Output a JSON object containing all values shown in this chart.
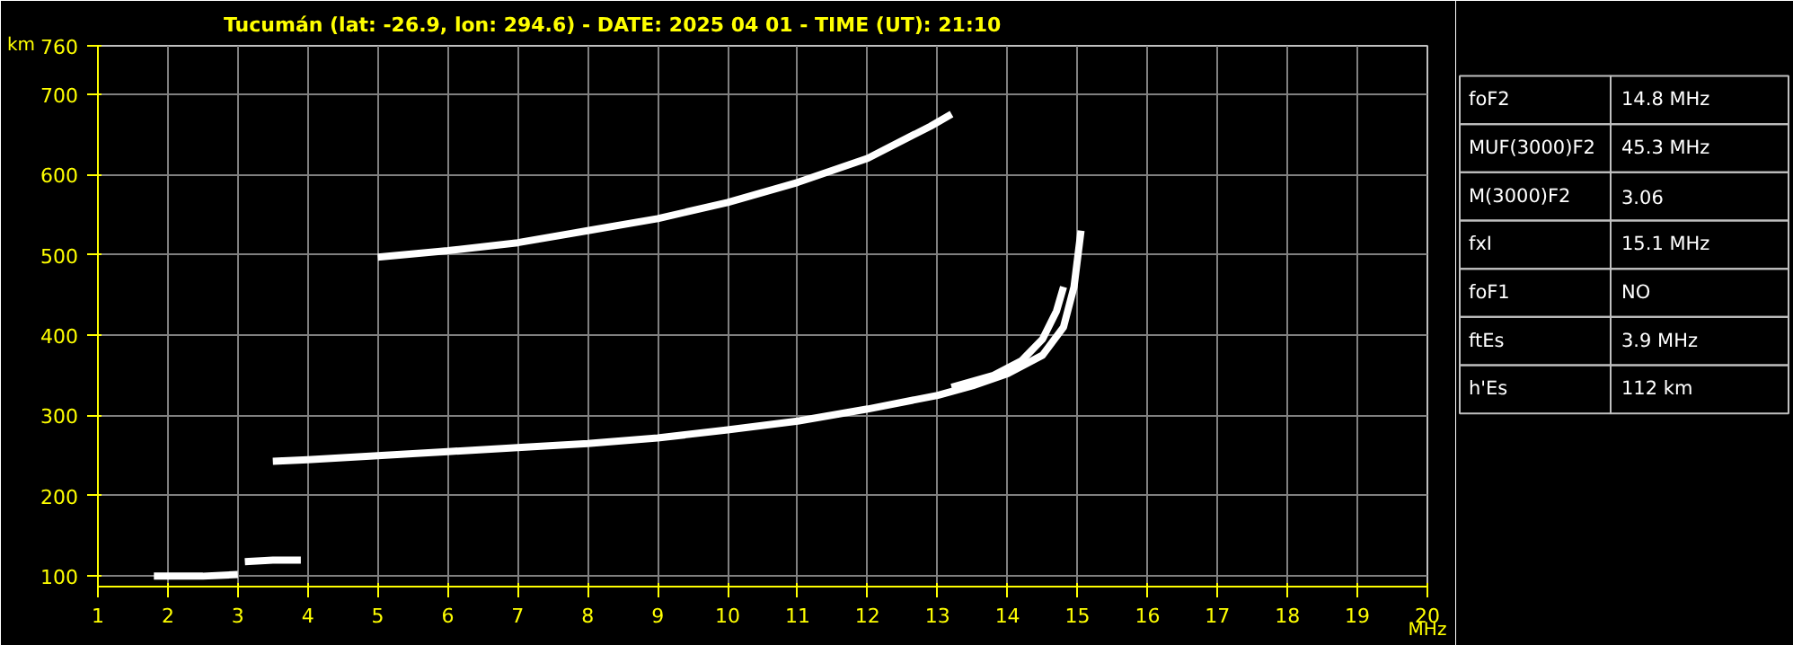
{
  "chart_data": [
    {
      "type": "line",
      "title": "Tucumán (lat: -26.9, lon: 294.6) - DATE: 2025 04 01 - TIME (UT): 21:10",
      "xlabel": "MHz",
      "ylabel": "km",
      "xlim": [
        1,
        20
      ],
      "ylim": [
        87,
        760
      ],
      "xticks": [
        1,
        2,
        3,
        4,
        5,
        6,
        7,
        8,
        9,
        10,
        11,
        12,
        13,
        14,
        15,
        16,
        17,
        18,
        19,
        20
      ],
      "yticks": [
        100,
        200,
        300,
        400,
        500,
        600,
        700,
        760
      ],
      "grid": true,
      "marker": "none",
      "line_style": "solid",
      "series": [
        {
          "color": "#ffffff",
          "x": [
            3.5,
            4,
            5,
            6,
            7,
            8,
            9,
            10,
            11,
            12,
            13,
            13.5,
            14,
            14.5,
            14.8,
            14.95,
            15.05
          ],
          "values": [
            243,
            245,
            250,
            255,
            260,
            265,
            272,
            282,
            293,
            308,
            325,
            337,
            352,
            375,
            410,
            460,
            530
          ]
        },
        {
          "color": "#ffffff",
          "x": [
            13.2,
            13.8,
            14.2,
            14.5,
            14.7,
            14.8
          ],
          "values": [
            335,
            350,
            368,
            395,
            430,
            460
          ]
        },
        {
          "color": "#ffffff",
          "x": [
            5,
            6,
            7,
            8,
            9,
            10,
            11,
            12,
            12.9,
            13.2
          ],
          "values": [
            497,
            505,
            515,
            530,
            545,
            565,
            590,
            620,
            660,
            675
          ]
        },
        {
          "color": "#ffffff",
          "x": [
            1.8,
            2.5,
            3
          ],
          "values": [
            100,
            100,
            102
          ]
        },
        {
          "color": "#ffffff",
          "x": [
            3.1,
            3.5,
            3.9
          ],
          "values": [
            118,
            120,
            120
          ]
        }
      ]
    },
    {
      "type": "other",
      "categories": [
        "foF2",
        "MUF(3000)F2",
        "M(3000)F2",
        "fxI",
        "foF1",
        "ftEs",
        "h'Es"
      ],
      "value_labels": [
        "14.8 MHz",
        "45.3 MHz",
        "3.06",
        "15.1 MHz",
        "NO",
        "3.9 MHz",
        "112 km"
      ]
    }
  ]
}
